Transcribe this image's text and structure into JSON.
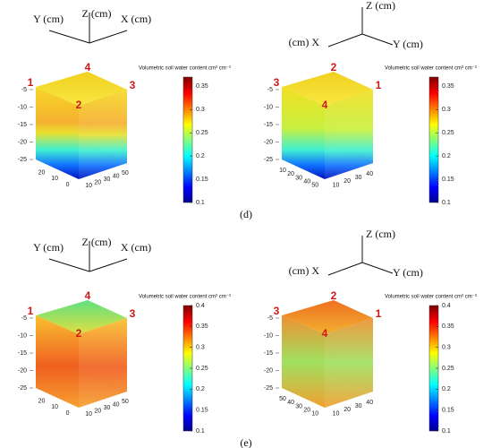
{
  "rows": [
    {
      "caption": "(d)",
      "panels": [
        {
          "triad": [
            "Y (cm)",
            "Z (cm)",
            "X (cm)"
          ],
          "colorbar_title": "Volumetric soil water content cm³ cm⁻³",
          "colorbar_lim": [
            0.1,
            0.37
          ],
          "colorbar_ticks": [
            0.1,
            0.15,
            0.2,
            0.25,
            0.3,
            0.35
          ],
          "zlim": [
            -25,
            -5
          ],
          "zticks": [
            -5,
            -10,
            -15,
            -20,
            -25
          ],
          "base_ticks_left": [
            20,
            10,
            0
          ],
          "base_ticks_right": [
            10,
            20,
            30,
            40,
            50
          ],
          "corners": [
            "1",
            "4",
            "3",
            "2"
          ]
        },
        {
          "triad": [
            "(cm) X",
            "Z (cm)",
            "Y (cm)"
          ],
          "colorbar_title": "Volumetric soil water content cm³ cm⁻³",
          "colorbar_lim": [
            0.1,
            0.37
          ],
          "colorbar_ticks": [
            0.1,
            0.15,
            0.2,
            0.25,
            0.3,
            0.35
          ],
          "zlim": [
            -25,
            -5
          ],
          "zticks": [
            -5,
            -10,
            -15,
            -20,
            -25
          ],
          "base_ticks_left": [
            10,
            20,
            30,
            40,
            50
          ],
          "base_ticks_right": [
            10,
            20,
            30,
            40
          ],
          "corners": [
            "3",
            "2",
            "1",
            "4"
          ]
        }
      ]
    },
    {
      "caption": "(e)",
      "panels": [
        {
          "triad": [
            "Y (cm)",
            "Z (cm)",
            "X (cm)"
          ],
          "colorbar_title": "Volumetric soil water content cm³ cm⁻³",
          "colorbar_lim": [
            0.1,
            0.4
          ],
          "colorbar_ticks": [
            0.1,
            0.15,
            0.2,
            0.25,
            0.3,
            0.35,
            0.4
          ],
          "zlim": [
            -25,
            -5
          ],
          "zticks": [
            -5,
            -10,
            -15,
            -20,
            -25
          ],
          "base_ticks_left": [
            20,
            10,
            0
          ],
          "base_ticks_right": [
            10,
            20,
            30,
            40,
            50
          ],
          "corners": [
            "1",
            "4",
            "3",
            "2"
          ]
        },
        {
          "triad": [
            "(cm) X",
            "Z (cm)",
            "Y (cm)"
          ],
          "colorbar_title": "Volumetric soil water content cm³ cm⁻³",
          "colorbar_lim": [
            0.1,
            0.4
          ],
          "colorbar_ticks": [
            0.1,
            0.15,
            0.2,
            0.25,
            0.3,
            0.35,
            0.4
          ],
          "zlim": [
            -25,
            -5
          ],
          "zticks": [
            -5,
            -10,
            -15,
            -20,
            -25
          ],
          "base_ticks_left": [
            50,
            40,
            30,
            20,
            10
          ],
          "base_ticks_right": [
            10,
            20,
            30,
            40
          ],
          "corners": [
            "3",
            "2",
            "1",
            "4"
          ]
        }
      ]
    }
  ]
}
